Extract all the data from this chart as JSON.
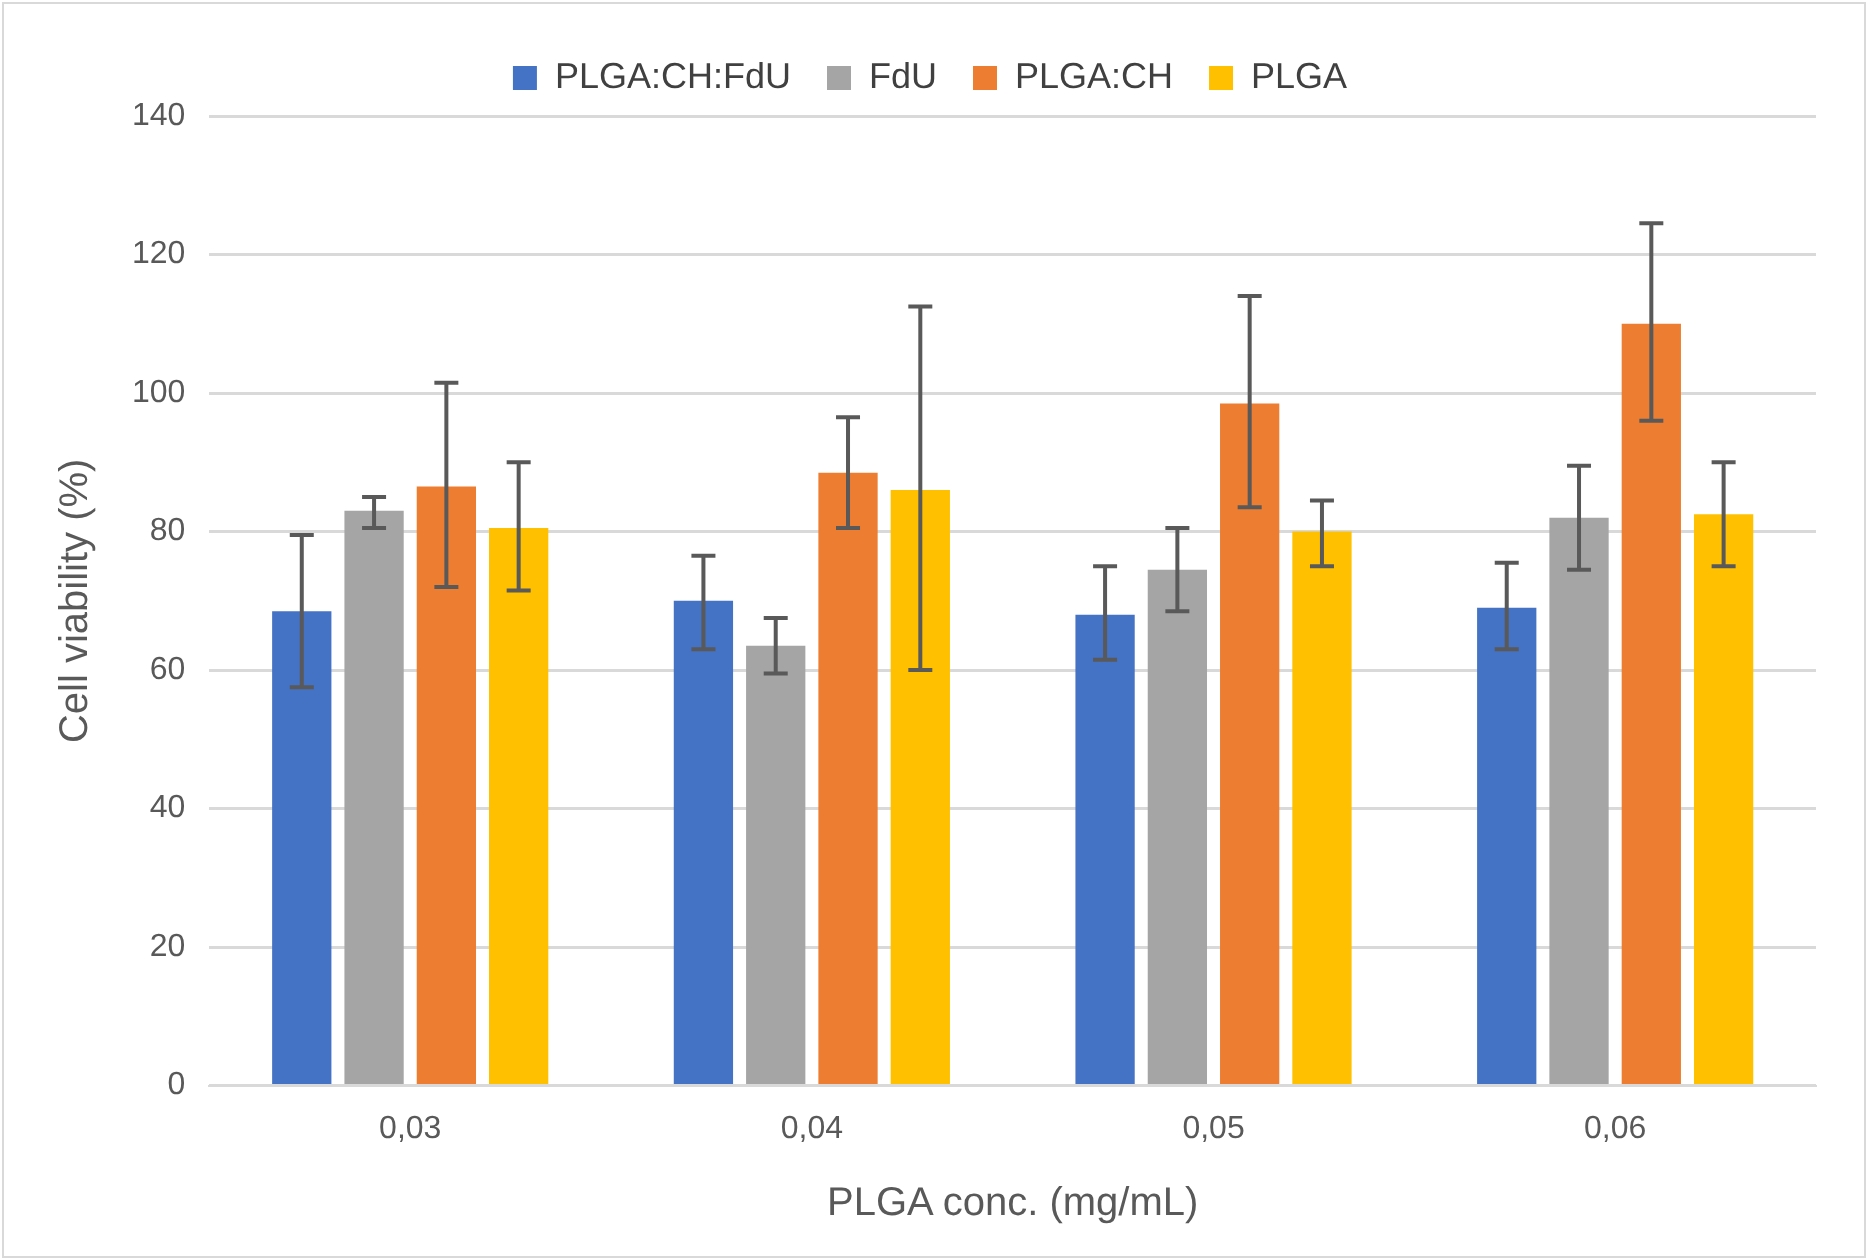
{
  "chart_data": {
    "type": "bar",
    "xlabel": "PLGA conc. (mg/mL)",
    "ylabel": "Cell viability (%)",
    "categories": [
      "0,03",
      "0,04",
      "0,05",
      "0,06"
    ],
    "series": [
      {
        "name": "PLGA:CH:FdU",
        "color": "#4472c4",
        "values": [
          68.5,
          70,
          68,
          69
        ],
        "errors": [
          [
            57.5,
            79.5
          ],
          [
            63,
            76.5
          ],
          [
            61.5,
            75
          ],
          [
            63,
            75.5
          ]
        ]
      },
      {
        "name": "FdU",
        "color": "#a5a5a5",
        "values": [
          83,
          63.5,
          74.5,
          82
        ],
        "errors": [
          [
            80.5,
            85
          ],
          [
            59.5,
            67.5
          ],
          [
            68.5,
            80.5
          ],
          [
            74.5,
            89.5
          ]
        ]
      },
      {
        "name": "PLGA:CH",
        "color": "#ed7d31",
        "values": [
          86.5,
          88.5,
          98.5,
          110
        ],
        "errors": [
          [
            72,
            101.5
          ],
          [
            80.5,
            96.5
          ],
          [
            83.5,
            114
          ],
          [
            96,
            124.5
          ]
        ]
      },
      {
        "name": "PLGA",
        "color": "#ffc000",
        "values": [
          80.5,
          86,
          80,
          82.5
        ],
        "errors": [
          [
            71.5,
            90
          ],
          [
            60,
            112.5
          ],
          [
            75,
            84.5
          ],
          [
            75,
            90
          ]
        ]
      }
    ],
    "ylim": [
      0,
      140
    ],
    "yticks": [
      0,
      20,
      40,
      60,
      80,
      100,
      120,
      140
    ],
    "grid": "y",
    "legend": "top"
  }
}
